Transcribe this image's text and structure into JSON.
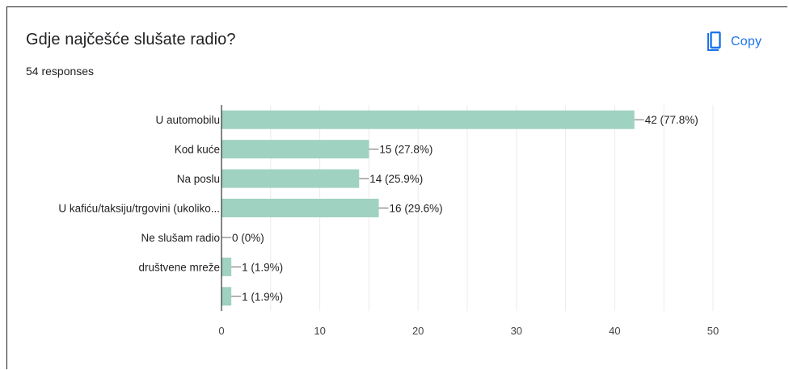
{
  "header": {
    "title": "Gdje najčešće slušate radio?",
    "responses": "54 responses",
    "copy_label": "Copy",
    "copy_icon": "copy-icon"
  },
  "colors": {
    "bar": "#9fd2c0",
    "axis": "#333333",
    "grid": "#ebebeb",
    "accent": "#1a73e8"
  },
  "chart_data": {
    "type": "bar",
    "orientation": "horizontal",
    "categories": [
      "U automobilu",
      "Kod kuće",
      "Na poslu",
      "U kafiću/taksiju/trgovini (ukoliko...",
      "Ne slušam radio",
      "društvene mreže",
      ""
    ],
    "values": [
      42,
      15,
      14,
      16,
      0,
      1,
      1
    ],
    "value_labels": [
      "42 (77.8%)",
      "15 (27.8%)",
      "14 (25.9%)",
      "16 (29.6%)",
      "0 (0%)",
      "1 (1.9%)",
      "1 (1.9%)"
    ],
    "xlim": [
      0,
      50
    ],
    "xticks": [
      0,
      10,
      20,
      30,
      40,
      50
    ],
    "xtick_labels": [
      "0",
      "10",
      "20",
      "30",
      "40",
      "50"
    ],
    "grid": true
  }
}
